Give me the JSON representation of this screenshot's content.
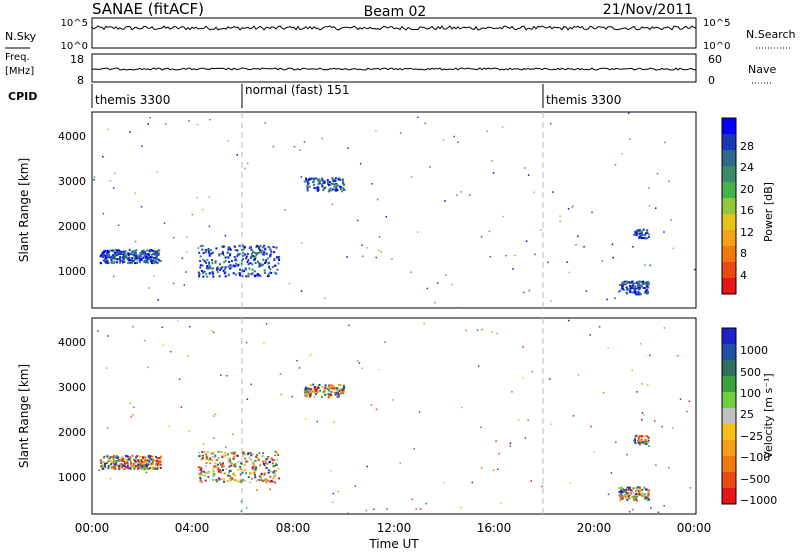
{
  "header": {
    "station": "SANAE (fitACF)",
    "beam": "Beam 02",
    "date": "21/Nov/2011"
  },
  "summary_panels": {
    "nsky_label": "N.Sky",
    "nsky_ticks": [
      "10^5",
      "10^0"
    ],
    "nsearch_label": "N.Search",
    "nsearch_ticks": [
      "10^5",
      "10^0"
    ],
    "freq_label_line1": "Freq.",
    "freq_label_line2": "[MHz]",
    "freq_ticks": [
      "18",
      "8"
    ],
    "nave_label": "Nave",
    "nave_ticks": [
      "60",
      "0"
    ],
    "cpid_label": "CPID"
  },
  "cpid_segments": [
    {
      "label": "themis 3300",
      "start_hour": 0
    },
    {
      "label": "normal (fast) 151",
      "start_hour": 6
    },
    {
      "label": "themis 3300",
      "start_hour": 18
    }
  ],
  "colors": {
    "scatter_blue": "#1f3fbf",
    "power_scale": [
      "#0000ff",
      "#1838b8",
      "#2f6a8a",
      "#3b8a6a",
      "#43b34a",
      "#8fc83a",
      "#e8c21a",
      "#f5a21a",
      "#f07a10",
      "#ea4a10",
      "#e51515"
    ],
    "velocity_scale": [
      "#2020c8",
      "#2050a8",
      "#2d7060",
      "#3aa040",
      "#70d040",
      "#c0c0c0",
      "#f5c11a",
      "#f59e16",
      "#f07a10",
      "#ea4a10",
      "#e51515"
    ]
  },
  "chart_data": [
    {
      "type": "scatter",
      "panel": "power",
      "xlabel": "",
      "ylabel": "Slant Range [km]",
      "xlim": [
        0,
        24
      ],
      "ylim": [
        180,
        4550
      ],
      "yticks": [
        "1000",
        "2000",
        "3000",
        "4000"
      ],
      "colorbar_label": "Power [dB]",
      "colorbar_ticks": [
        "4",
        "8",
        "12",
        "16",
        "20",
        "24",
        "28"
      ],
      "clusters": [
        {
          "x_center": 1.5,
          "y_center": 1350,
          "x_spread": 1.2,
          "y_spread": 150,
          "density": "high"
        },
        {
          "x_center": 5.8,
          "y_center": 1250,
          "x_spread": 1.6,
          "y_spread": 350,
          "density": "high"
        },
        {
          "x_center": 9.2,
          "y_center": 2950,
          "x_spread": 0.8,
          "y_spread": 150,
          "density": "medium"
        },
        {
          "x_center": 21.5,
          "y_center": 650,
          "x_spread": 0.6,
          "y_spread": 150,
          "density": "medium"
        },
        {
          "x_center": 21.8,
          "y_center": 1850,
          "x_spread": 0.3,
          "y_spread": 100,
          "density": "low"
        }
      ]
    },
    {
      "type": "scatter",
      "panel": "velocity",
      "xlabel": "Time UT",
      "ylabel": "Slant Range [km]",
      "xlim": [
        0,
        24
      ],
      "ylim": [
        180,
        4550
      ],
      "xticks": [
        "00:00",
        "04:00",
        "08:00",
        "12:00",
        "16:00",
        "20:00",
        "00:00"
      ],
      "yticks": [
        "1000",
        "2000",
        "3000",
        "4000"
      ],
      "colorbar_label": "Velocity [m s⁻¹]",
      "colorbar_ticks": [
        "1000",
        "500",
        "100",
        "25",
        "−25",
        "−100",
        "−500",
        "−1000"
      ],
      "clusters": [
        {
          "x_center": 1.5,
          "y_center": 1350,
          "x_spread": 1.2,
          "y_spread": 150,
          "density": "high"
        },
        {
          "x_center": 5.8,
          "y_center": 1250,
          "x_spread": 1.6,
          "y_spread": 350,
          "density": "high"
        },
        {
          "x_center": 9.2,
          "y_center": 2950,
          "x_spread": 0.8,
          "y_spread": 150,
          "density": "medium"
        },
        {
          "x_center": 21.5,
          "y_center": 650,
          "x_spread": 0.6,
          "y_spread": 150,
          "density": "medium"
        },
        {
          "x_center": 21.8,
          "y_center": 1850,
          "x_spread": 0.3,
          "y_spread": 100,
          "density": "low"
        }
      ]
    }
  ]
}
